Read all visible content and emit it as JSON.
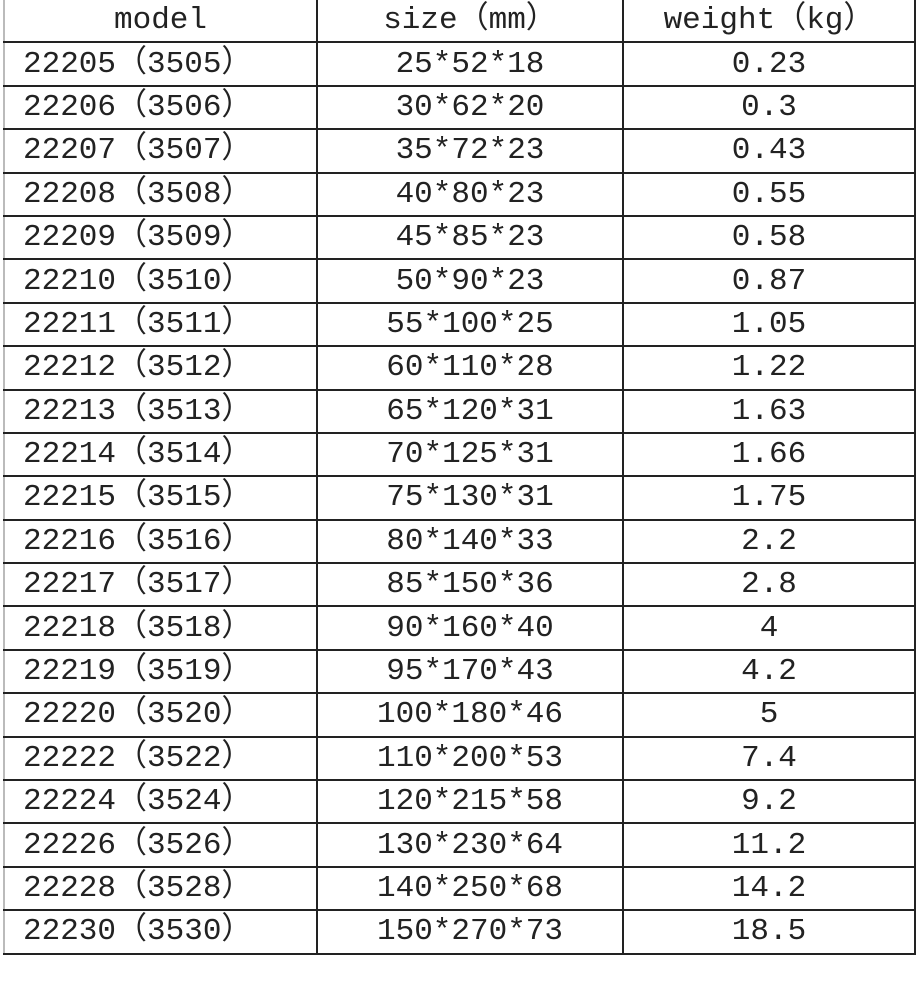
{
  "headers": [
    "model",
    "size（mm）",
    "weight（kg）"
  ],
  "rows": [
    [
      "22205（3505）",
      "25*52*18",
      "0.23"
    ],
    [
      "22206（3506）",
      "30*62*20",
      "0.3"
    ],
    [
      "22207（3507）",
      "35*72*23",
      "0.43"
    ],
    [
      "22208（3508）",
      "40*80*23",
      "0.55"
    ],
    [
      "22209（3509）",
      "45*85*23",
      "0.58"
    ],
    [
      "22210（3510）",
      "50*90*23",
      "0.87"
    ],
    [
      "22211（3511）",
      "55*100*25",
      "1.05"
    ],
    [
      "22212（3512）",
      "60*110*28",
      "1.22"
    ],
    [
      "22213（3513）",
      "65*120*31",
      "1.63"
    ],
    [
      "22214（3514）",
      "70*125*31",
      "1.66"
    ],
    [
      "22215（3515）",
      "75*130*31",
      "1.75"
    ],
    [
      "22216（3516）",
      "80*140*33",
      "2.2"
    ],
    [
      "22217（3517）",
      "85*150*36",
      "2.8"
    ],
    [
      "22218（3518）",
      "90*160*40",
      "4"
    ],
    [
      "22219（3519）",
      "95*170*43",
      "4.2"
    ],
    [
      "22220（3520）",
      "100*180*46",
      "5"
    ],
    [
      "22222（3522）",
      "110*200*53",
      "7.4"
    ],
    [
      "22224（3524）",
      "120*215*58",
      "9.2"
    ],
    [
      "22226（3526）",
      "130*230*64",
      "11.2"
    ],
    [
      "22228（3528）",
      "140*250*68",
      "14.2"
    ],
    [
      "22230（3530）",
      "150*270*73",
      "18.5"
    ]
  ]
}
